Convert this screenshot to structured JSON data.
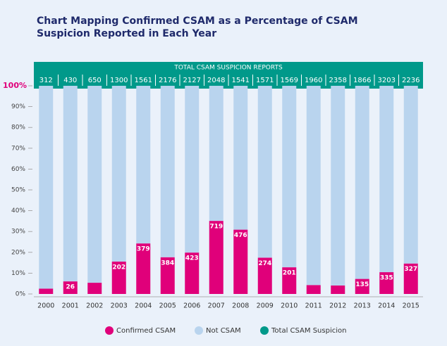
{
  "chart_data": {
    "type": "bar",
    "stacking": "percent",
    "title": [
      "Chart Mapping Confirmed CSAM as a Percentage of CSAM",
      "Suspicion Reported in Each Year"
    ],
    "annotation": "TOTAL CSAM SUSPICION REPORTS",
    "categories": [
      "2000",
      "2001",
      "2002",
      "2003",
      "2004",
      "2005",
      "2006",
      "2007",
      "2008",
      "2009",
      "2010",
      "2011",
      "2012",
      "2013",
      "2014",
      "2015"
    ],
    "series": [
      {
        "name": "Confirmed CSAM",
        "color": "#e0007a",
        "values": [
          8,
          26,
          35,
          202,
          379,
          384,
          423,
          719,
          476,
          274,
          201,
          84,
          96,
          135,
          335,
          327
        ]
      },
      {
        "name": "Not CSAM",
        "color": "#b9d4ee",
        "values": [
          304,
          404,
          615,
          1098,
          1182,
          1792,
          1704,
          1329,
          1065,
          1297,
          1368,
          1876,
          2262,
          1731,
          2868,
          1909
        ]
      },
      {
        "name": "Total CSAM Suspicion",
        "color": "#00998a",
        "values": [
          312,
          430,
          650,
          1300,
          1561,
          2176,
          2127,
          2048,
          1541,
          1571,
          1569,
          1960,
          2358,
          1866,
          3203,
          2236
        ]
      }
    ],
    "ylim": [
      0,
      100
    ],
    "yticks": [
      {
        "value": 0,
        "label": "0%"
      },
      {
        "value": 10,
        "label": "10%"
      },
      {
        "value": 20,
        "label": "20%"
      },
      {
        "value": 30,
        "label": "30%"
      },
      {
        "value": 40,
        "label": "40%"
      },
      {
        "value": 50,
        "label": "50%"
      },
      {
        "value": 60,
        "label": "60%"
      },
      {
        "value": 70,
        "label": "70%"
      },
      {
        "value": 80,
        "label": "80%"
      },
      {
        "value": 90,
        "label": "90%"
      },
      {
        "value": 100,
        "label": "100%"
      }
    ],
    "grid": false
  }
}
